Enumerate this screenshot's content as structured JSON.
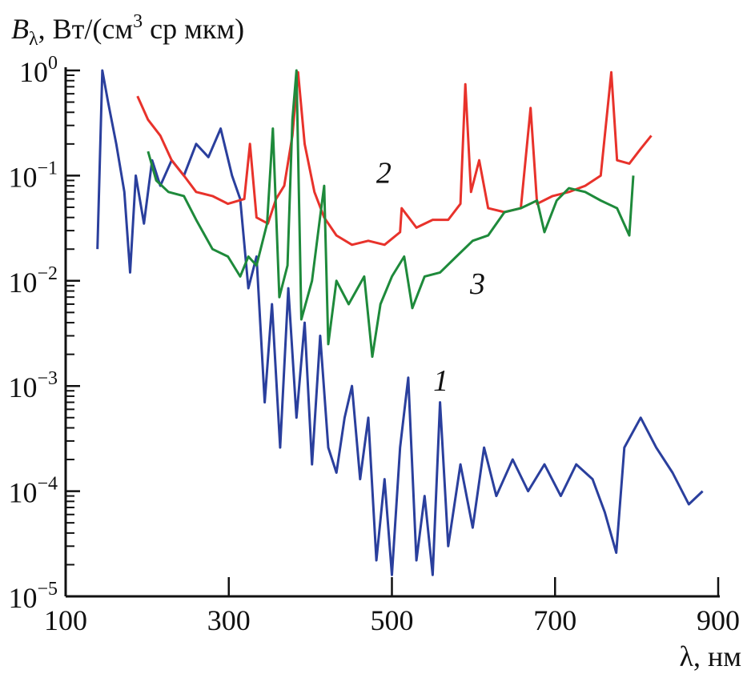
{
  "chart_data": {
    "type": "line",
    "title": "",
    "ylabel": {
      "symbol": "B",
      "subscript": "λ",
      "unit_pre": ", Вт/(см",
      "unit_sup": "3",
      "unit_post": " ср мкм)"
    },
    "xlabel": "λ, нм",
    "xlim": [
      100,
      900
    ],
    "ylim": [
      1e-05,
      1
    ],
    "yscale": "log",
    "x_ticks": [
      "100",
      "300",
      "500",
      "700",
      "900"
    ],
    "x_tick_values": [
      100,
      300,
      500,
      700,
      900
    ],
    "y_ticks": [
      {
        "base": "10",
        "exp": "0",
        "value": 1
      },
      {
        "base": "10",
        "exp": "−1",
        "value": 0.1
      },
      {
        "base": "10",
        "exp": "−2",
        "value": 0.01
      },
      {
        "base": "10",
        "exp": "−3",
        "value": 0.001
      },
      {
        "base": "10",
        "exp": "−4",
        "value": 0.0001
      },
      {
        "base": "10",
        "exp": "−5",
        "value": 1e-05
      }
    ],
    "grid": false,
    "series": [
      {
        "name": "1",
        "color": "#2a3f9d",
        "label_at": [
          560,
          0.0009
        ],
        "x": [
          139,
          145,
          152,
          162,
          172,
          179,
          186,
          196,
          206,
          216,
          230,
          245,
          260,
          275,
          290,
          304,
          314,
          324,
          334,
          344,
          353,
          363,
          373,
          383,
          393,
          402,
          412,
          422,
          432,
          442,
          451,
          461,
          471,
          481,
          491,
          500,
          510,
          520,
          530,
          540,
          550,
          559,
          569,
          584,
          599,
          613,
          628,
          648,
          667,
          687,
          707,
          726,
          746,
          761,
          775,
          785,
          805,
          824,
          844,
          864,
          881
        ],
        "y": [
          0.02,
          1.0,
          0.5,
          0.2,
          0.07,
          0.012,
          0.1,
          0.035,
          0.14,
          0.08,
          0.14,
          0.1,
          0.2,
          0.15,
          0.28,
          0.1,
          0.06,
          0.0085,
          0.017,
          0.0007,
          0.006,
          0.00026,
          0.0085,
          0.0005,
          0.004,
          0.00018,
          0.003,
          0.00026,
          0.00015,
          0.0005,
          0.001,
          0.00013,
          0.0005,
          2.2e-05,
          0.00013,
          1.6e-05,
          0.00026,
          0.0012,
          2.2e-05,
          9e-05,
          1.6e-05,
          0.0007,
          3e-05,
          0.00018,
          4.5e-05,
          0.00026,
          9e-05,
          0.0002,
          0.0001,
          0.00018,
          9e-05,
          0.00018,
          0.00013,
          6.3e-05,
          2.6e-05,
          0.00026,
          0.0005,
          0.00026,
          0.00015,
          7.5e-05,
          0.0001
        ]
      },
      {
        "name": "2",
        "color": "#e8322b",
        "label_at": [
          490,
          0.085
        ],
        "x": [
          188,
          201,
          216,
          230,
          245,
          260,
          280,
          299,
          319,
          326,
          334,
          348,
          358,
          368,
          378,
          385,
          393,
          405,
          417,
          432,
          451,
          471,
          491,
          510,
          512,
          530,
          550,
          569,
          584,
          590,
          597,
          607,
          618,
          638,
          658,
          670,
          678,
          697,
          717,
          737,
          756,
          769,
          776,
          791,
          805,
          818
        ],
        "y": [
          0.57,
          0.34,
          0.24,
          0.14,
          0.1,
          0.07,
          0.064,
          0.054,
          0.06,
          0.2,
          0.04,
          0.035,
          0.06,
          0.08,
          0.24,
          0.96,
          0.2,
          0.07,
          0.04,
          0.027,
          0.022,
          0.024,
          0.022,
          0.029,
          0.049,
          0.032,
          0.038,
          0.038,
          0.054,
          0.74,
          0.07,
          0.14,
          0.049,
          0.045,
          0.049,
          0.44,
          0.054,
          0.064,
          0.07,
          0.08,
          0.1,
          0.96,
          0.14,
          0.13,
          0.18,
          0.24
        ]
      },
      {
        "name": "3",
        "color": "#1e8a3b",
        "label_at": [
          605,
          0.0075
        ],
        "x": [
          201,
          211,
          226,
          245,
          260,
          280,
          299,
          314,
          324,
          334,
          347,
          354,
          362,
          372,
          378,
          383,
          389,
          402,
          412,
          417,
          422,
          432,
          447,
          466,
          476,
          486,
          500,
          515,
          525,
          540,
          559,
          579,
          599,
          618,
          638,
          658,
          678,
          687,
          702,
          717,
          737,
          756,
          776,
          791,
          796
        ],
        "y": [
          0.17,
          0.09,
          0.07,
          0.064,
          0.038,
          0.02,
          0.017,
          0.011,
          0.017,
          0.014,
          0.035,
          0.28,
          0.007,
          0.014,
          0.34,
          1.0,
          0.0043,
          0.01,
          0.041,
          0.08,
          0.0025,
          0.01,
          0.006,
          0.011,
          0.0019,
          0.006,
          0.011,
          0.017,
          0.0055,
          0.011,
          0.012,
          0.017,
          0.024,
          0.027,
          0.045,
          0.049,
          0.058,
          0.029,
          0.058,
          0.076,
          0.07,
          0.058,
          0.049,
          0.027,
          0.1
        ]
      }
    ]
  }
}
